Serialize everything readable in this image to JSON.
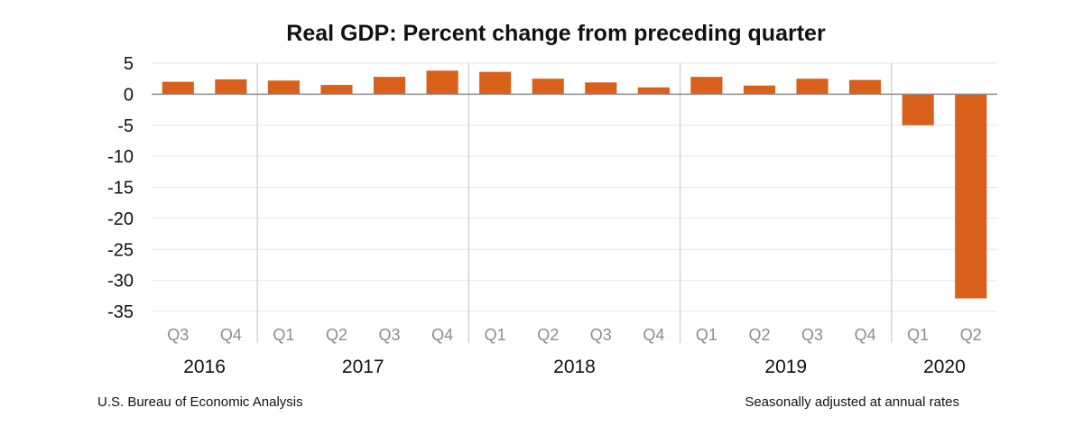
{
  "chart_data": {
    "type": "bar",
    "title": "Real GDP:  Percent change from preceding quarter",
    "xlabel": "",
    "ylabel": "",
    "ylim": [
      -35,
      5
    ],
    "yticks": [
      5,
      0,
      -5,
      -10,
      -15,
      -20,
      -25,
      -30,
      -35
    ],
    "categories": [
      "Q3",
      "Q4",
      "Q1",
      "Q2",
      "Q3",
      "Q4",
      "Q1",
      "Q2",
      "Q3",
      "Q4",
      "Q1",
      "Q2",
      "Q3",
      "Q4",
      "Q1",
      "Q2"
    ],
    "values": [
      2.0,
      2.4,
      2.2,
      1.5,
      2.8,
      3.8,
      3.6,
      2.5,
      1.9,
      1.1,
      2.8,
      1.4,
      2.5,
      2.3,
      -5.0,
      -32.9
    ],
    "year_groups": [
      {
        "label": "2016",
        "count": 2
      },
      {
        "label": "2017",
        "count": 4
      },
      {
        "label": "2018",
        "count": 4
      },
      {
        "label": "2019",
        "count": 4
      },
      {
        "label": "2020",
        "count": 2
      }
    ],
    "bar_color": "#d9601b",
    "grid": true
  },
  "footer": {
    "source": "U.S. Bureau of Economic Analysis",
    "note": "Seasonally adjusted at annual rates"
  }
}
